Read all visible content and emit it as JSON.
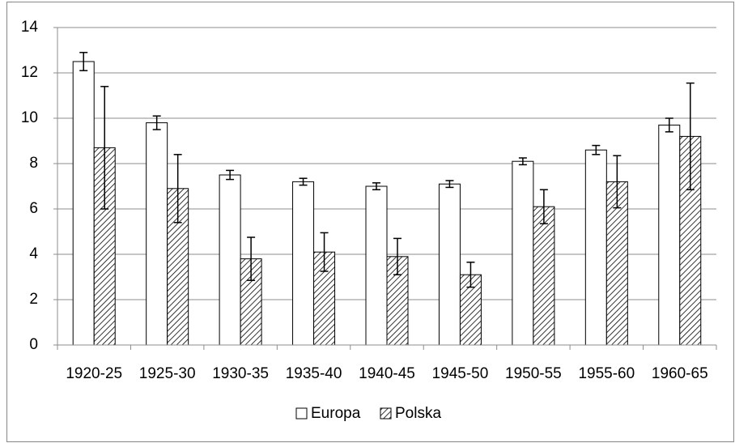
{
  "chart_data": {
    "type": "bar",
    "categories": [
      "1920-25",
      "1925-30",
      "1930-35",
      "1935-40",
      "1940-45",
      "1945-50",
      "1950-55",
      "1955-60",
      "1960-65"
    ],
    "series": [
      {
        "name": "Europa",
        "color": "#ffffff",
        "hatch": false,
        "values": [
          12.5,
          9.8,
          7.5,
          7.2,
          7.0,
          7.1,
          8.1,
          8.6,
          9.7
        ],
        "errors": [
          0.4,
          0.3,
          0.2,
          0.15,
          0.15,
          0.15,
          0.15,
          0.2,
          0.3
        ]
      },
      {
        "name": "Polska",
        "color": "#000000",
        "hatch": true,
        "values": [
          8.7,
          6.9,
          3.8,
          4.1,
          3.9,
          3.1,
          6.1,
          7.2,
          9.2
        ],
        "errors": [
          2.7,
          1.5,
          0.95,
          0.85,
          0.8,
          0.55,
          0.75,
          1.15,
          2.35
        ]
      }
    ],
    "ylim": [
      0,
      14
    ],
    "yticks": [
      0,
      2,
      4,
      6,
      8,
      10,
      12,
      14
    ],
    "grid": true,
    "legend": "bottom"
  }
}
